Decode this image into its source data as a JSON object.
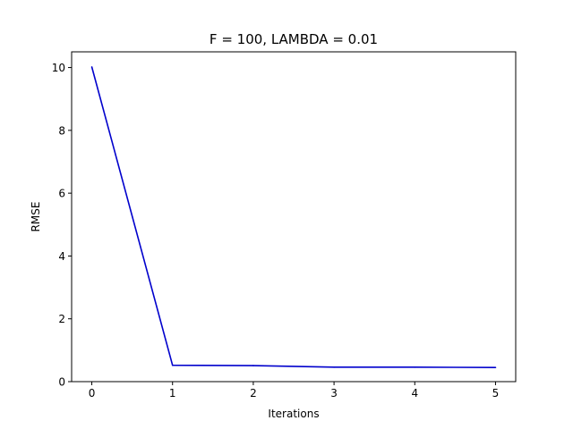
{
  "chart_data": {
    "type": "line",
    "title": "F = 100, LAMBDA = 0.01",
    "xlabel": "Iterations",
    "ylabel": "RMSE",
    "x": [
      0,
      1,
      2,
      3,
      4,
      5
    ],
    "series": [
      {
        "values": [
          10.02,
          0.52,
          0.51,
          0.46,
          0.46,
          0.45
        ],
        "color": "#0000cc"
      }
    ],
    "xlim": [
      -0.25,
      5.25
    ],
    "ylim": [
      0,
      10.5
    ],
    "xticks": [
      0,
      1,
      2,
      3,
      4,
      5
    ],
    "yticks": [
      0,
      2,
      4,
      6,
      8,
      10
    ],
    "xtick_labels": [
      "0",
      "1",
      "2",
      "3",
      "4",
      "5"
    ],
    "ytick_labels": [
      "0",
      "2",
      "4",
      "6",
      "8",
      "10"
    ],
    "grid": false,
    "legend": "none"
  }
}
